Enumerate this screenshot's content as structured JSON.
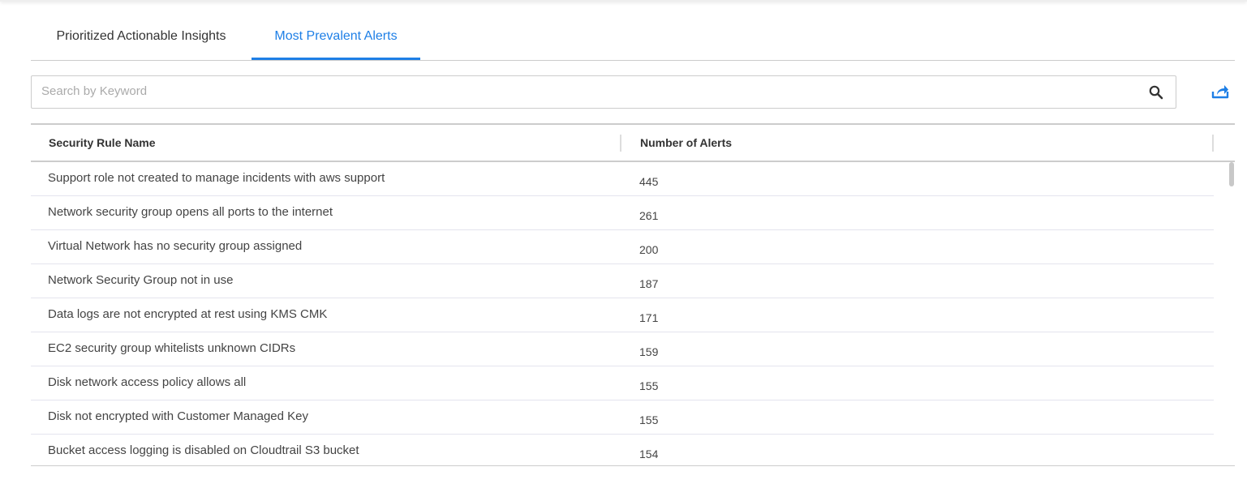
{
  "tabs": [
    {
      "label": "Prioritized Actionable Insights",
      "active": false
    },
    {
      "label": "Most Prevalent Alerts",
      "active": true
    }
  ],
  "search": {
    "placeholder": "Search by Keyword",
    "value": "",
    "icon": "search-icon"
  },
  "export": {
    "icon": "share-export-icon",
    "color": "#1e7fe6"
  },
  "accent": "#1e7fe6",
  "table": {
    "columns": [
      "Security Rule Name",
      "Number of Alerts"
    ],
    "rows": [
      [
        "Support role not created to manage incidents with aws support",
        "445"
      ],
      [
        "Network security group opens all ports to the internet",
        "261"
      ],
      [
        "Virtual Network has no security group assigned",
        "200"
      ],
      [
        "Network Security Group not in use",
        "187"
      ],
      [
        "Data logs are not encrypted at rest using KMS CMK",
        "171"
      ],
      [
        "EC2 security group whitelists unknown CIDRs",
        "159"
      ],
      [
        "Disk network access policy allows all",
        "155"
      ],
      [
        "Disk not encrypted with Customer Managed Key",
        "155"
      ],
      [
        "Bucket access logging is disabled on Cloudtrail S3 bucket",
        "154"
      ]
    ]
  }
}
